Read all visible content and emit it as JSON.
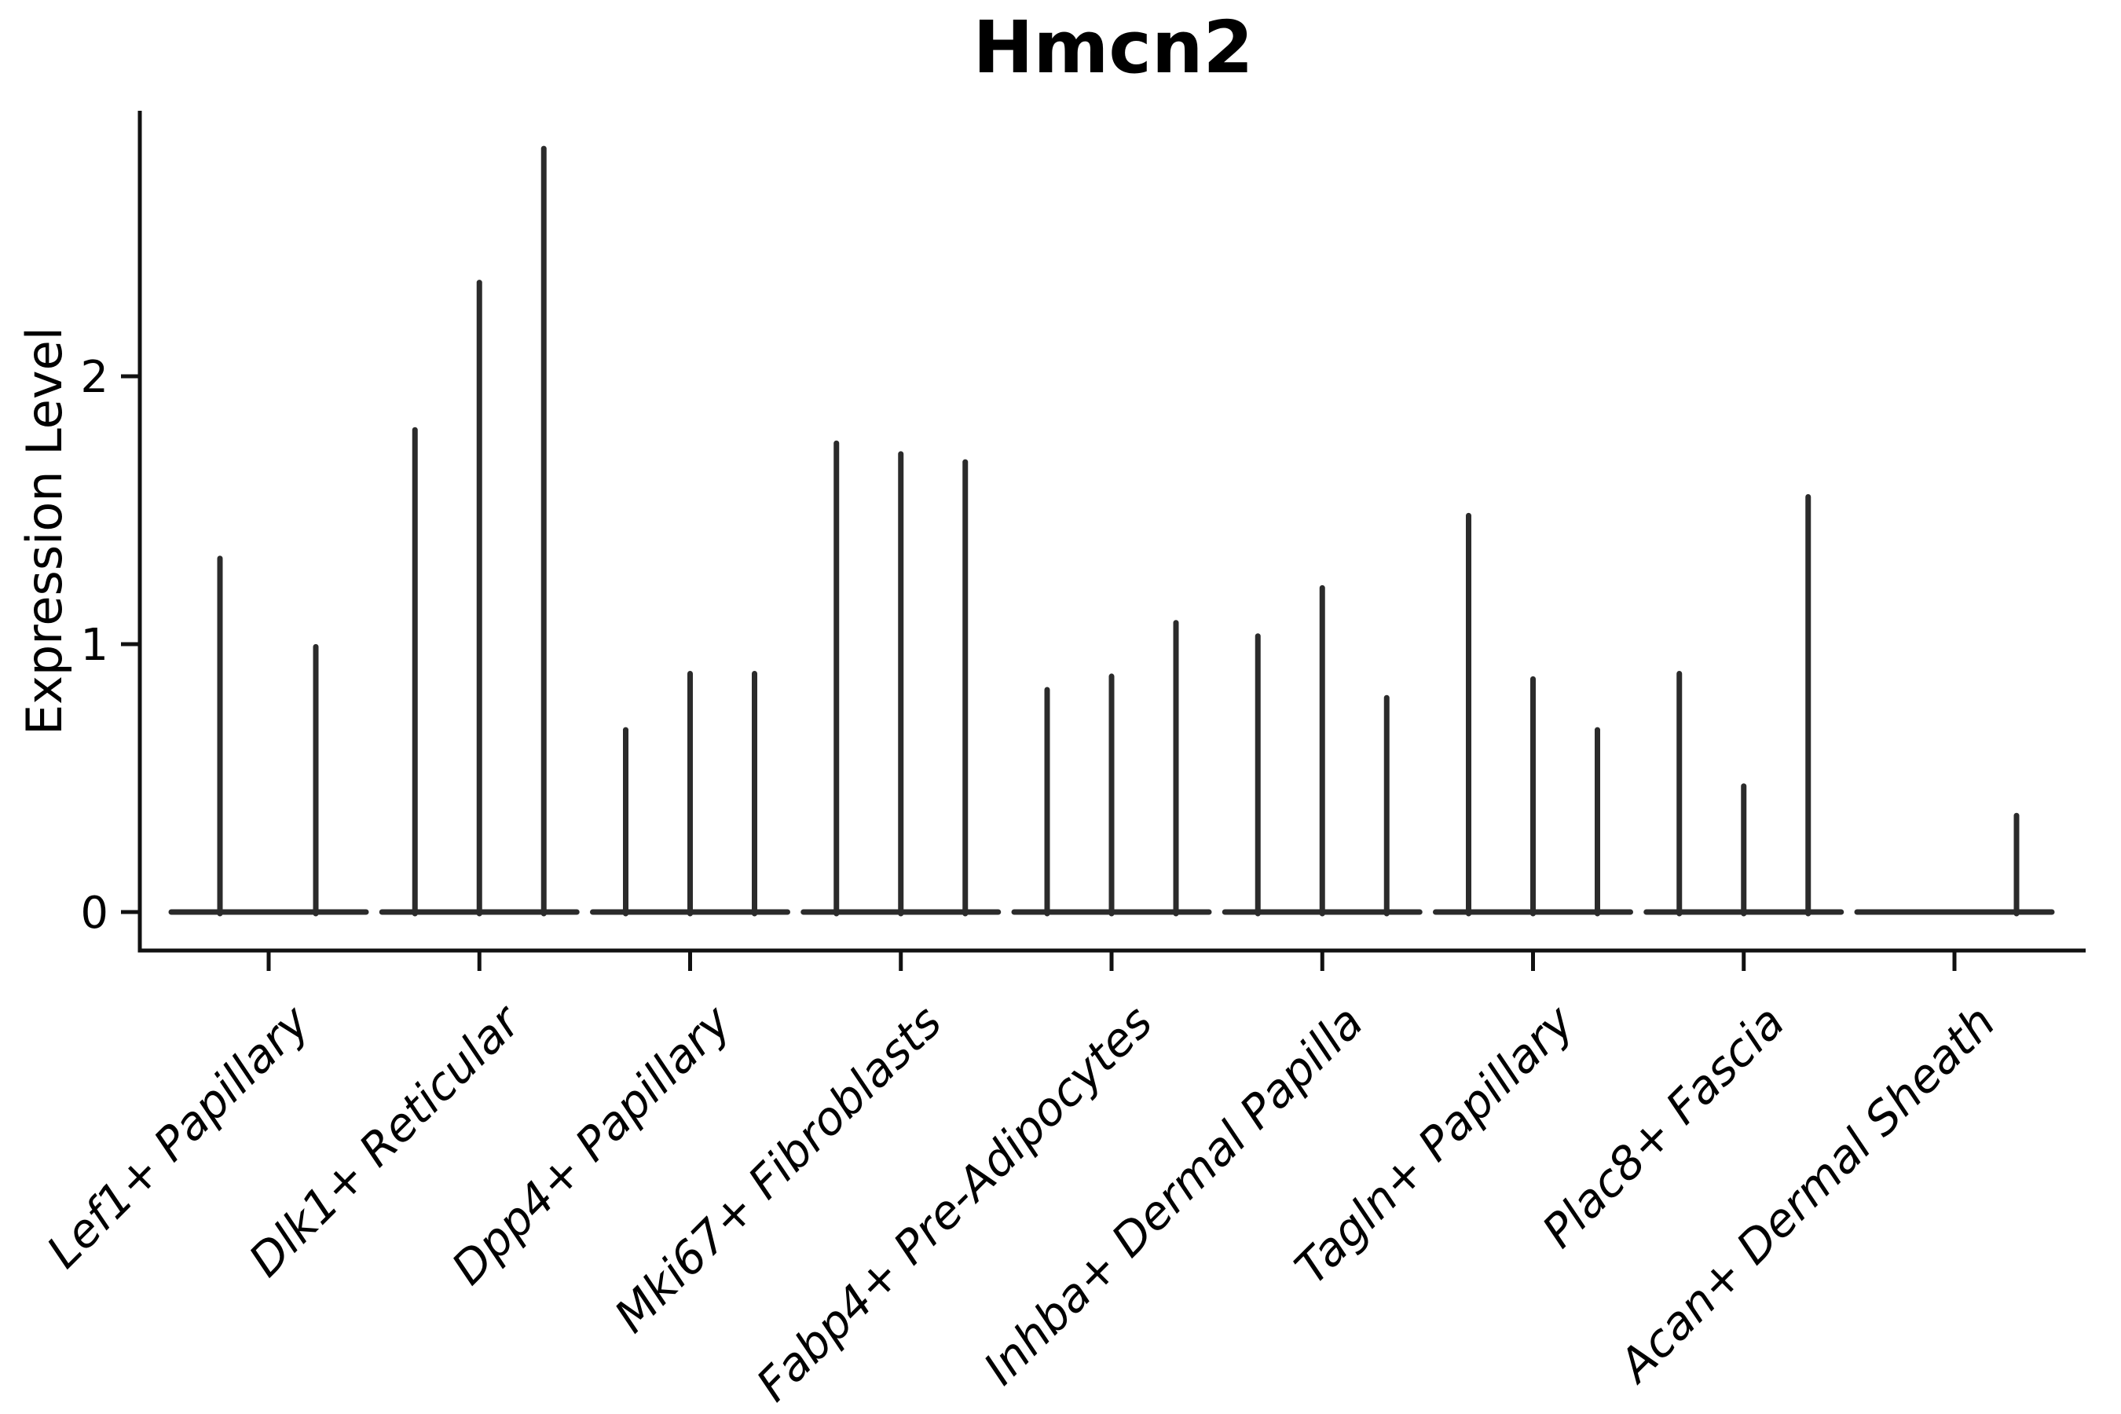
{
  "figure": {
    "title": "Hmcn2",
    "background_color": "#ffffff",
    "axis_color": "#111111",
    "violin_color": "#2b2b2b"
  },
  "chart_data": {
    "type": "violin",
    "title": "Hmcn2",
    "xlabel": "",
    "ylabel": "Expression Level",
    "yticks": [
      0,
      1,
      2
    ],
    "ylim": [
      -0.2,
      3.0
    ],
    "grid": "off",
    "legend": "none",
    "orientation": "vertical",
    "categories": [
      "Lef1+ Papillary",
      "Dlk1+ Reticular",
      "Dpp4+ Papillary",
      "Mki67+ Fibroblasts",
      "Fabp4+ Pre-Adipocytes",
      "Inhba+ Dermal Papilla",
      "Tagln+ Papillary",
      "Plac8+ Fascia",
      "Acan+ Dermal Sheath"
    ],
    "groups": [
      {
        "category": "Lef1+ Papillary",
        "violins": [
          {
            "offset": -62,
            "peak": 1.32
          },
          {
            "offset": 60,
            "peak": 0.99
          }
        ]
      },
      {
        "category": "Dlk1+ Reticular",
        "violins": [
          {
            "offset": -82,
            "peak": 1.8
          },
          {
            "offset": 0,
            "peak": 2.35
          },
          {
            "offset": 82,
            "peak": 2.85
          }
        ]
      },
      {
        "category": "Dpp4+ Papillary",
        "violins": [
          {
            "offset": -82,
            "peak": 0.68
          },
          {
            "offset": 0,
            "peak": 0.89
          },
          {
            "offset": 82,
            "peak": 0.89
          }
        ]
      },
      {
        "category": "Mki67+ Fibroblasts",
        "violins": [
          {
            "offset": -82,
            "peak": 1.75
          },
          {
            "offset": 0,
            "peak": 1.71
          },
          {
            "offset": 82,
            "peak": 1.68
          }
        ]
      },
      {
        "category": "Fabp4+ Pre-Adipocytes",
        "violins": [
          {
            "offset": -82,
            "peak": 0.83
          },
          {
            "offset": 0,
            "peak": 0.88
          },
          {
            "offset": 82,
            "peak": 1.08
          }
        ]
      },
      {
        "category": "Inhba+ Dermal Papilla",
        "violins": [
          {
            "offset": -82,
            "peak": 1.03
          },
          {
            "offset": 0,
            "peak": 1.21
          },
          {
            "offset": 82,
            "peak": 0.8
          }
        ]
      },
      {
        "category": "Tagln+ Papillary",
        "violins": [
          {
            "offset": -82,
            "peak": 1.48
          },
          {
            "offset": 0,
            "peak": 0.87
          },
          {
            "offset": 82,
            "peak": 0.68
          }
        ]
      },
      {
        "category": "Plac8+ Fascia",
        "violins": [
          {
            "offset": -82,
            "peak": 0.89
          },
          {
            "offset": 0,
            "peak": 0.47
          },
          {
            "offset": 82,
            "peak": 1.55
          }
        ]
      },
      {
        "category": "Acan+ Dermal Sheath",
        "violins": [
          {
            "offset": 79,
            "peak": 0.36
          }
        ]
      }
    ],
    "note": "Expression is near 0 for most cells in every cluster; each violin collapses to a flat baseline at 0 with a thin vertical tail reaching the listed peak expression value."
  }
}
